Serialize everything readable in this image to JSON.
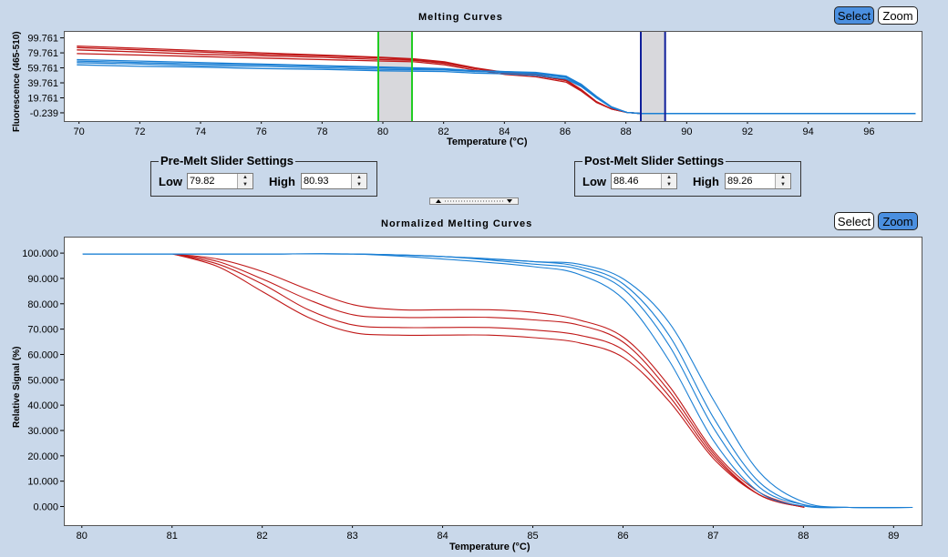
{
  "top_panel": {
    "title": "Melting Curves",
    "select_label": "Select",
    "zoom_label": "Zoom",
    "y_axis_label": "Fluorescence (465-510)",
    "x_axis_label": "Temperature (°C)",
    "y_ticks": [
      "99.761",
      "79.761",
      "59.761",
      "39.761",
      "19.761",
      "-0.239"
    ],
    "x_ticks": [
      "70",
      "72",
      "74",
      "76",
      "78",
      "80",
      "82",
      "84",
      "86",
      "88",
      "90",
      "92",
      "94",
      "96"
    ]
  },
  "pre_melt": {
    "legend": "Pre-Melt Slider Settings",
    "low_label": "Low",
    "low_value": "79.82",
    "high_label": "High",
    "high_value": "80.93"
  },
  "post_melt": {
    "legend": "Post-Melt Slider Settings",
    "low_label": "Low",
    "low_value": "88.46",
    "high_label": "High",
    "high_value": "89.26"
  },
  "bottom_panel": {
    "title": "Normalized Melting Curves",
    "select_label": "Select",
    "zoom_label": "Zoom",
    "y_axis_label": "Relative Signal (%)",
    "x_axis_label": "Temperature (°C)",
    "y_ticks": [
      "100.000",
      "90.000",
      "80.000",
      "70.000",
      "60.000",
      "50.000",
      "40.000",
      "30.000",
      "20.000",
      "10.000",
      "0.000"
    ],
    "x_ticks": [
      "80",
      "81",
      "82",
      "83",
      "84",
      "85",
      "86",
      "87",
      "88",
      "89"
    ]
  },
  "colors": {
    "red_series": "#c01818",
    "blue_series": "#1a7fd4",
    "pre_slider": "#22cc22",
    "post_slider": "#101f9a",
    "slider_region": "#d8d8dc"
  },
  "chart_data": [
    {
      "type": "line",
      "title": "Melting Curves",
      "xlabel": "Temperature (°C)",
      "ylabel": "Fluorescence (465-510)",
      "xlim": [
        69.5,
        97.7
      ],
      "ylim": [
        -10,
        109
      ],
      "pre_melt_range": [
        79.82,
        80.93
      ],
      "post_melt_range": [
        88.46,
        89.26
      ],
      "series": [
        {
          "group": "red",
          "x": [
            69.9,
            72,
            74,
            76,
            78,
            80,
            81,
            82,
            83,
            84,
            85,
            86,
            86.5,
            87,
            87.5,
            88,
            88.5,
            92,
            96
          ],
          "values": [
            90,
            87,
            84,
            81,
            78,
            75,
            73,
            69,
            61,
            55,
            52,
            45,
            32,
            16,
            6,
            1.5,
            0,
            0,
            0
          ]
        },
        {
          "group": "red",
          "x": [
            69.9,
            72,
            74,
            76,
            78,
            80,
            81,
            82,
            83,
            84,
            85,
            86,
            86.5,
            87,
            87.5,
            88,
            88.5,
            92,
            96
          ],
          "values": [
            85,
            82,
            79,
            77,
            75,
            72,
            71,
            67,
            60,
            54,
            51,
            44,
            31,
            15,
            6,
            1.5,
            0,
            0,
            0
          ]
        },
        {
          "group": "red",
          "x": [
            69.9,
            72,
            74,
            76,
            78,
            80,
            81,
            82,
            83,
            84,
            85,
            86,
            86.5,
            87,
            87.5,
            88,
            88.5,
            92,
            96
          ],
          "values": [
            80,
            78,
            76,
            74,
            72,
            70,
            69,
            65,
            58,
            52,
            49,
            42,
            30,
            15,
            6,
            1.5,
            0,
            0,
            0
          ]
        },
        {
          "group": "red",
          "x": [
            69.9,
            72,
            74,
            76,
            78,
            80,
            81,
            82,
            83,
            84,
            85,
            86,
            86.5,
            87,
            87.5,
            88,
            88.5,
            92,
            96
          ],
          "values": [
            88,
            85,
            82,
            79,
            77,
            74,
            72,
            68,
            60,
            54,
            51,
            44,
            31,
            15,
            6,
            1.5,
            0,
            0,
            0
          ]
        },
        {
          "group": "blue",
          "x": [
            69.9,
            72,
            74,
            76,
            78,
            80,
            82,
            83,
            84,
            85,
            86,
            86.5,
            87,
            87.5,
            88,
            88.5,
            92,
            96,
            97.5
          ],
          "values": [
            72,
            70,
            68,
            66,
            64,
            62,
            60,
            57,
            56,
            54,
            49,
            38,
            22,
            8,
            1.5,
            0,
            0,
            0,
            0
          ]
        },
        {
          "group": "blue",
          "x": [
            69.9,
            72,
            74,
            76,
            78,
            80,
            82,
            83,
            84,
            85,
            86,
            86.5,
            87,
            87.5,
            88,
            88.5,
            92,
            96,
            97.5
          ],
          "values": [
            68,
            66,
            64,
            63,
            61,
            59,
            58,
            56,
            55,
            53,
            48,
            37,
            21,
            8,
            1.5,
            0,
            0,
            0,
            0
          ]
        },
        {
          "group": "blue",
          "x": [
            69.9,
            72,
            74,
            76,
            78,
            80,
            82,
            83,
            84,
            85,
            86,
            86.5,
            87,
            87.5,
            88,
            88.5,
            92,
            96,
            97.5
          ],
          "values": [
            65,
            63,
            62,
            60,
            59,
            57,
            56,
            54,
            53,
            51,
            46,
            36,
            21,
            8,
            1.5,
            0,
            0,
            0,
            0
          ]
        },
        {
          "group": "blue",
          "x": [
            69.9,
            72,
            74,
            76,
            78,
            80,
            82,
            83,
            84,
            85,
            86,
            86.5,
            87,
            87.5,
            88,
            88.5,
            92,
            96,
            97.5
          ],
          "values": [
            70,
            68,
            66,
            65,
            63,
            61,
            59,
            57,
            56,
            55,
            50,
            39,
            23,
            9,
            1.5,
            0,
            0,
            0,
            0
          ]
        }
      ]
    },
    {
      "type": "line",
      "title": "Normalized Melting Curves",
      "xlabel": "Temperature (°C)",
      "ylabel": "Relative Signal (%)",
      "xlim": [
        79.8,
        89.3
      ],
      "ylim": [
        -7,
        106.5
      ],
      "series": [
        {
          "group": "red",
          "x": [
            81,
            81.5,
            82,
            82.5,
            83,
            83.5,
            84,
            84.5,
            85,
            85.5,
            86,
            86.5,
            87,
            87.5,
            88
          ],
          "values": [
            100,
            98,
            93,
            86,
            80,
            78,
            78,
            78,
            77,
            74,
            67,
            48,
            22,
            6,
            0
          ]
        },
        {
          "group": "red",
          "x": [
            81,
            81.5,
            82,
            82.5,
            83,
            83.5,
            84,
            84.5,
            85,
            85.5,
            86,
            86.5,
            87,
            87.5,
            88
          ],
          "values": [
            100,
            97,
            90,
            82,
            76,
            75,
            75,
            75,
            74,
            72,
            65,
            46,
            21,
            5,
            0
          ]
        },
        {
          "group": "red",
          "x": [
            81,
            81.5,
            82,
            82.5,
            83,
            83.5,
            84,
            84.5,
            85,
            85.5,
            86,
            86.5,
            87,
            87.5,
            88
          ],
          "values": [
            100,
            96,
            88,
            78,
            72,
            71,
            71,
            71,
            70,
            68,
            62,
            44,
            20,
            5,
            0
          ]
        },
        {
          "group": "red",
          "x": [
            81,
            81.5,
            82,
            82.5,
            83,
            83.5,
            84,
            84.5,
            85,
            85.5,
            86,
            86.5,
            87,
            87.5,
            88
          ],
          "values": [
            100,
            95,
            85,
            75,
            69,
            68,
            68,
            68,
            67,
            65,
            59,
            42,
            19,
            5,
            0
          ]
        },
        {
          "group": "blue",
          "x": [
            80,
            81,
            82,
            83,
            84,
            85,
            85.5,
            86,
            86.5,
            87,
            87.5,
            88,
            88.5,
            89.2
          ],
          "values": [
            100,
            100,
            100,
            100,
            99,
            97,
            95,
            88,
            68,
            35,
            10,
            1,
            0,
            0
          ]
        },
        {
          "group": "blue",
          "x": [
            80,
            81,
            82,
            83,
            84,
            85,
            85.5,
            86,
            86.5,
            87,
            87.5,
            88,
            88.5,
            89.2
          ],
          "values": [
            100,
            100,
            100,
            100,
            99,
            96,
            94,
            86,
            64,
            31,
            8,
            1,
            0,
            0
          ]
        },
        {
          "group": "blue",
          "x": [
            80,
            81,
            82,
            83,
            84,
            85,
            85.5,
            86,
            86.5,
            87,
            87.5,
            88,
            88.5,
            89.2
          ],
          "values": [
            100,
            100,
            100,
            100,
            98,
            95,
            92,
            82,
            58,
            26,
            6,
            0.5,
            0,
            0
          ]
        },
        {
          "group": "blue",
          "x": [
            80,
            81,
            82,
            83,
            84,
            85,
            85.5,
            86,
            86.5,
            87,
            87.5,
            88,
            88.5,
            89.2
          ],
          "values": [
            100,
            100,
            100,
            100,
            99,
            97,
            96,
            90,
            73,
            42,
            14,
            2,
            0,
            0
          ]
        }
      ]
    }
  ]
}
